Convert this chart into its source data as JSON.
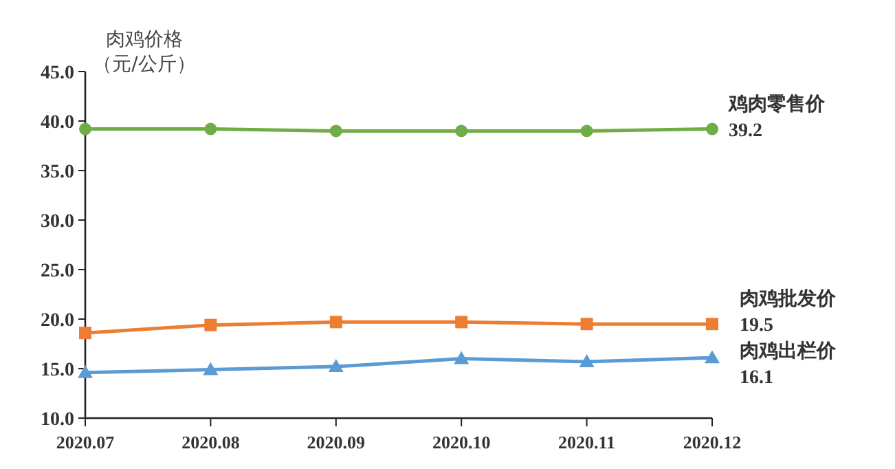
{
  "chart_data": {
    "type": "line",
    "ylabel": "肉鸡价格（元/公斤）",
    "categories": [
      "2020.07",
      "2020.08",
      "2020.09",
      "2020.10",
      "2020.11",
      "2020.12"
    ],
    "ylim": [
      10,
      45
    ],
    "yticks": [
      {
        "value": 10,
        "label": "10.0"
      },
      {
        "value": 15,
        "label": "15.0"
      },
      {
        "value": 20,
        "label": "20.0"
      },
      {
        "value": 25,
        "label": "25.0"
      },
      {
        "value": 30,
        "label": "30.0"
      },
      {
        "value": 35,
        "label": "35.0"
      },
      {
        "value": 40,
        "label": "40.0"
      },
      {
        "value": 45,
        "label": "45.0"
      }
    ],
    "grid": false,
    "series": [
      {
        "name": "鸡肉零售价",
        "color": "#70ad47",
        "marker": "circle",
        "values": [
          39.2,
          39.2,
          39.0,
          39.0,
          39.0,
          39.2
        ],
        "value_labels": [
          null,
          null,
          null,
          null,
          null,
          "39.2"
        ]
      },
      {
        "name": "肉鸡批发价",
        "color": "#ed7d31",
        "marker": "square",
        "values": [
          18.6,
          19.4,
          19.7,
          19.7,
          19.5,
          19.5
        ],
        "value_labels": [
          null,
          null,
          null,
          null,
          null,
          "19.5"
        ]
      },
      {
        "name": "肉鸡出栏价",
        "color": "#5b9bd5",
        "marker": "triangle",
        "values": [
          14.6,
          14.9,
          15.2,
          16.0,
          15.7,
          16.1
        ],
        "value_labels": [
          null,
          null,
          null,
          null,
          null,
          "16.1"
        ]
      }
    ]
  }
}
